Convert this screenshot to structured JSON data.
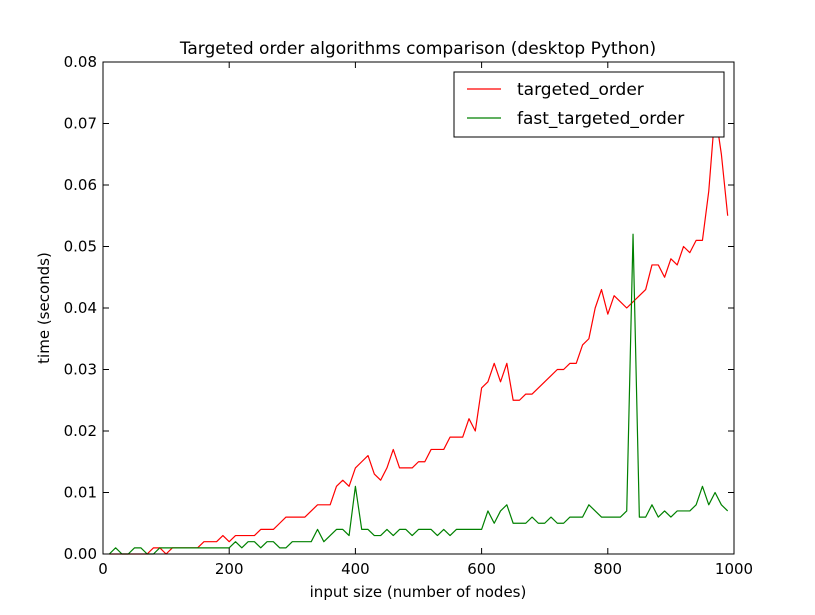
{
  "chart_data": {
    "type": "line",
    "title": "Targeted order algorithms comparison (desktop Python)",
    "xlabel": "input size (number of nodes)",
    "ylabel": "time (seconds)",
    "xlim": [
      0,
      1000
    ],
    "ylim": [
      0,
      0.08
    ],
    "xticks": [
      0,
      200,
      400,
      600,
      800,
      1000
    ],
    "yticks": [
      0.0,
      0.01,
      0.02,
      0.03,
      0.04,
      0.05,
      0.06,
      0.07,
      0.08
    ],
    "xtick_labels": [
      "0",
      "200",
      "400",
      "600",
      "800",
      "1000"
    ],
    "ytick_labels": [
      "0.00",
      "0.01",
      "0.02",
      "0.03",
      "0.04",
      "0.05",
      "0.06",
      "0.07",
      "0.08"
    ],
    "grid": false,
    "legend_position": "top-right",
    "x": [
      10,
      20,
      30,
      40,
      50,
      60,
      70,
      80,
      90,
      100,
      110,
      120,
      130,
      140,
      150,
      160,
      170,
      180,
      190,
      200,
      210,
      220,
      230,
      240,
      250,
      260,
      270,
      280,
      290,
      300,
      310,
      320,
      330,
      340,
      350,
      360,
      370,
      380,
      390,
      400,
      410,
      420,
      430,
      440,
      450,
      460,
      470,
      480,
      490,
      500,
      510,
      520,
      530,
      540,
      550,
      560,
      570,
      580,
      590,
      600,
      610,
      620,
      630,
      640,
      650,
      660,
      670,
      680,
      690,
      700,
      710,
      720,
      730,
      740,
      750,
      760,
      770,
      780,
      790,
      800,
      810,
      820,
      830,
      840,
      850,
      860,
      870,
      880,
      890,
      900,
      910,
      920,
      930,
      940,
      950,
      960,
      970,
      980,
      990
    ],
    "series": [
      {
        "name": "targeted_order",
        "color": "#ff0000",
        "values": [
          0.0,
          0.0,
          0.0,
          0.0,
          0.0,
          0.0,
          0.0,
          0.001,
          0.001,
          0.0,
          0.001,
          0.001,
          0.001,
          0.001,
          0.001,
          0.002,
          0.002,
          0.002,
          0.003,
          0.002,
          0.003,
          0.003,
          0.003,
          0.003,
          0.004,
          0.004,
          0.004,
          0.005,
          0.006,
          0.006,
          0.006,
          0.006,
          0.007,
          0.008,
          0.008,
          0.008,
          0.011,
          0.012,
          0.011,
          0.014,
          0.015,
          0.016,
          0.013,
          0.012,
          0.014,
          0.017,
          0.014,
          0.014,
          0.014,
          0.015,
          0.015,
          0.017,
          0.017,
          0.017,
          0.019,
          0.019,
          0.019,
          0.022,
          0.02,
          0.027,
          0.028,
          0.031,
          0.028,
          0.031,
          0.025,
          0.025,
          0.026,
          0.026,
          0.027,
          0.028,
          0.029,
          0.03,
          0.03,
          0.031,
          0.031,
          0.034,
          0.035,
          0.04,
          0.043,
          0.039,
          0.042,
          0.041,
          0.04,
          0.041,
          0.042,
          0.043,
          0.047,
          0.047,
          0.045,
          0.048,
          0.047,
          0.05,
          0.049,
          0.051,
          0.051,
          0.059,
          0.072,
          0.065,
          0.055
        ]
      },
      {
        "name": "fast_targeted_order",
        "color": "#008000",
        "values": [
          0.0,
          0.001,
          0.0,
          0.0,
          0.001,
          0.001,
          0.0,
          0.0,
          0.001,
          0.001,
          0.001,
          0.001,
          0.001,
          0.001,
          0.001,
          0.001,
          0.001,
          0.001,
          0.001,
          0.001,
          0.002,
          0.001,
          0.002,
          0.002,
          0.001,
          0.002,
          0.002,
          0.001,
          0.001,
          0.002,
          0.002,
          0.002,
          0.002,
          0.004,
          0.002,
          0.003,
          0.004,
          0.004,
          0.003,
          0.011,
          0.004,
          0.004,
          0.003,
          0.003,
          0.004,
          0.003,
          0.004,
          0.004,
          0.003,
          0.004,
          0.004,
          0.004,
          0.003,
          0.004,
          0.003,
          0.004,
          0.004,
          0.004,
          0.004,
          0.004,
          0.007,
          0.005,
          0.007,
          0.008,
          0.005,
          0.005,
          0.005,
          0.006,
          0.005,
          0.005,
          0.006,
          0.005,
          0.005,
          0.006,
          0.006,
          0.006,
          0.008,
          0.007,
          0.006,
          0.006,
          0.006,
          0.006,
          0.007,
          0.052,
          0.006,
          0.006,
          0.008,
          0.006,
          0.007,
          0.006,
          0.007,
          0.007,
          0.007,
          0.008,
          0.011,
          0.008,
          0.01,
          0.008,
          0.007
        ]
      }
    ]
  }
}
